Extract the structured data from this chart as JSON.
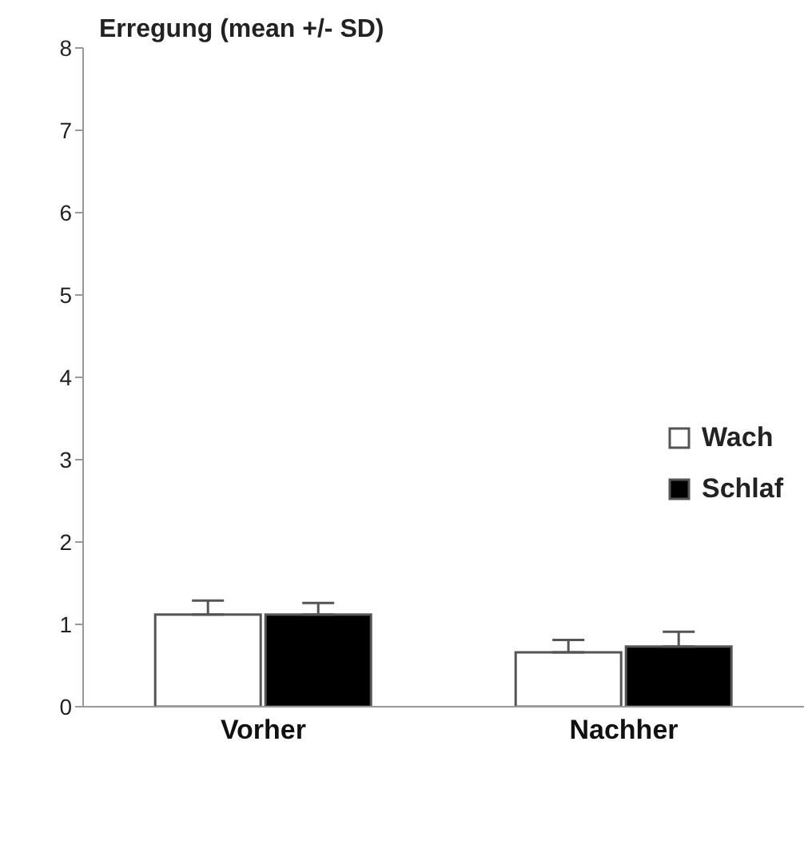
{
  "chart_data": {
    "type": "bar",
    "title": "Erregung (mean +/- SD)",
    "categories": [
      "Vorher",
      "Nachher"
    ],
    "series": [
      {
        "name": "Wach",
        "color": "#ffffff",
        "values": [
          1.12,
          0.66
        ],
        "errors": [
          [
            1.12,
            1.29
          ],
          [
            0.66,
            0.81
          ]
        ]
      },
      {
        "name": "Schlaf",
        "color": "#000000",
        "values": [
          1.12,
          0.73
        ],
        "errors": [
          [
            1.12,
            1.26
          ],
          [
            0.73,
            0.91
          ]
        ]
      }
    ],
    "ylim": [
      0,
      8
    ],
    "yticks": [
      0,
      1,
      2,
      3,
      4,
      5,
      6,
      7,
      8
    ],
    "grid": false,
    "legend": "right"
  }
}
